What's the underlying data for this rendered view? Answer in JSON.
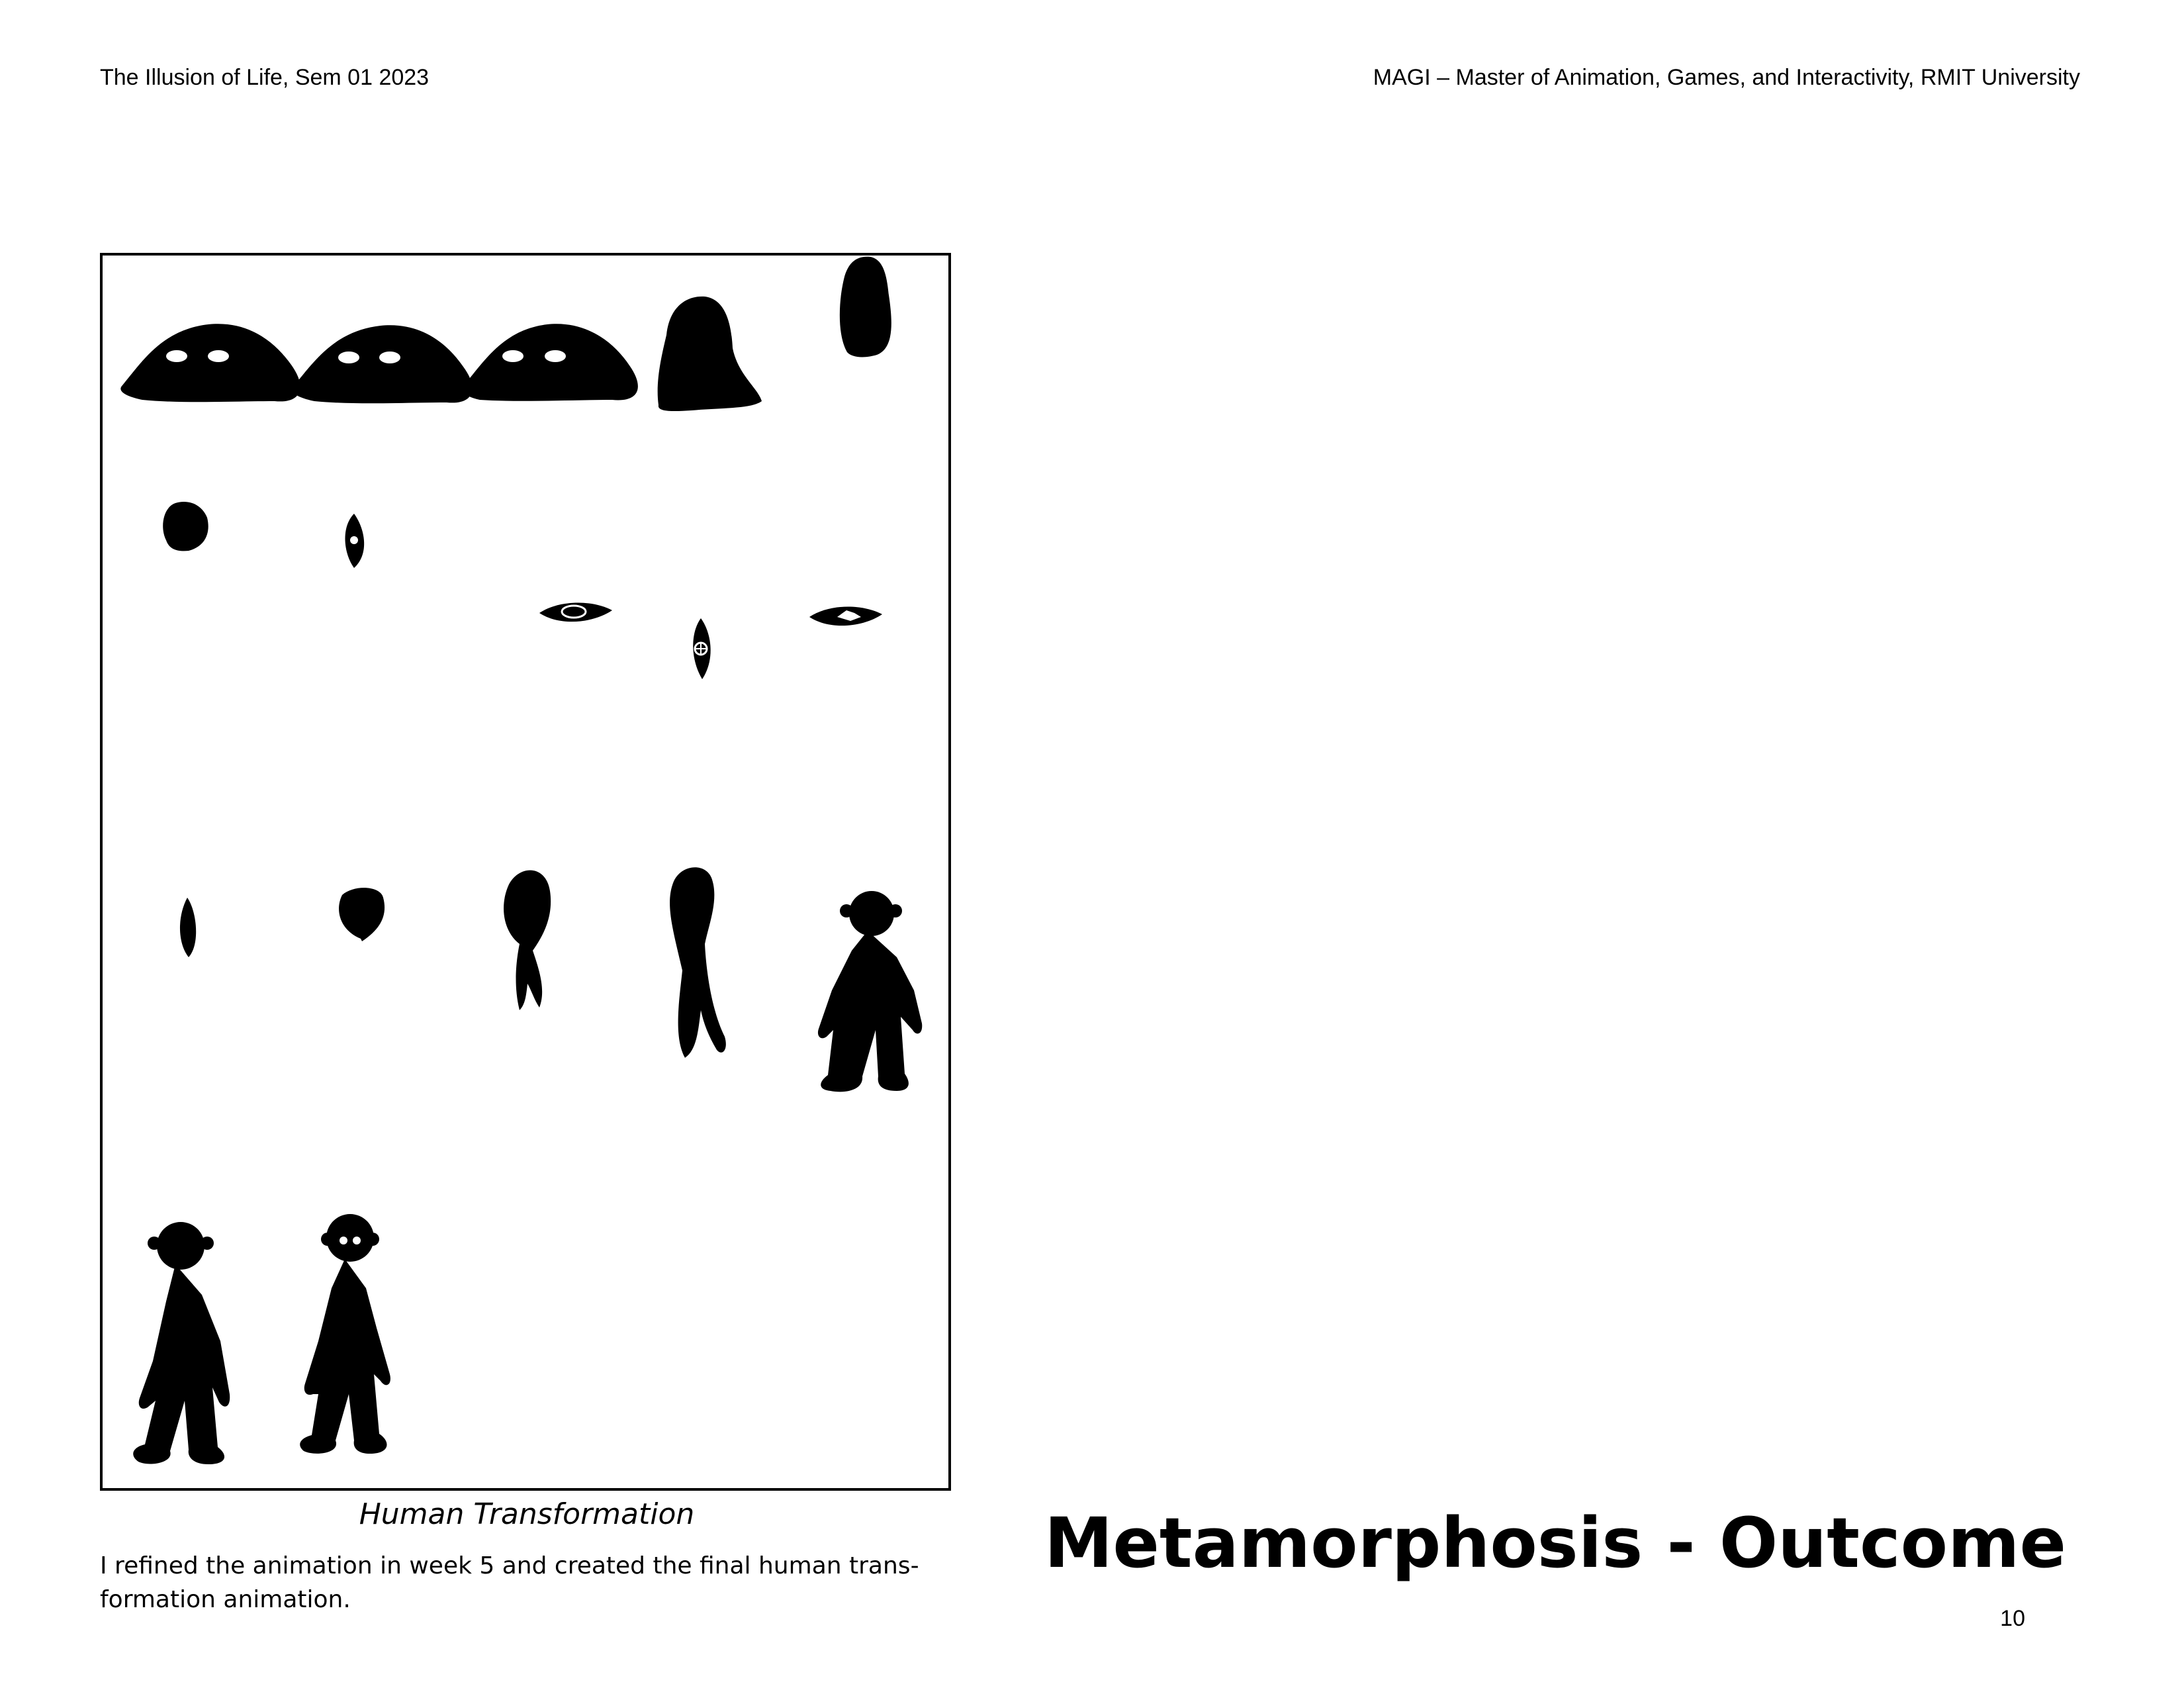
{
  "header": {
    "left": "The Illusion of Life, Sem 01 2023",
    "right": "MAGI – Master of Animation, Games, and Interactivity, RMIT University"
  },
  "figure": {
    "caption": "Human Transformation"
  },
  "body_text": "I refined the animation in week 5 and created the final human trans- formation animation.",
  "title": "Metamorphosis - Outcome",
  "page_number": "10"
}
